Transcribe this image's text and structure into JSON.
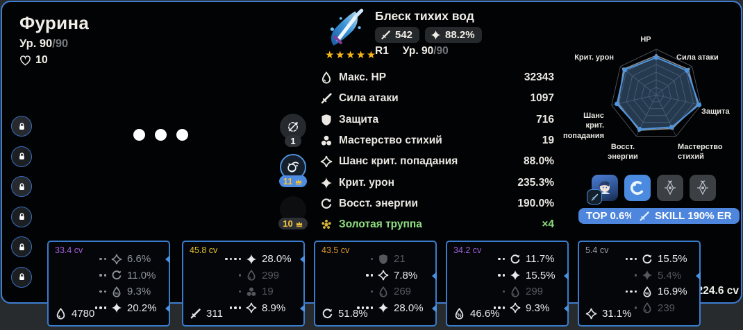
{
  "page": {
    "background": "#272b2e",
    "panel_color": "#020304",
    "accent_blue": "#3f7ed2"
  },
  "character": {
    "name": "Фурина",
    "level": "Ур. 90",
    "level_max": "/90",
    "friendship": "10"
  },
  "equip_slots": [
    {
      "locked": true,
      "has_art": true
    },
    {
      "locked": true,
      "has_art": false
    },
    {
      "locked": true,
      "has_art": true
    },
    {
      "locked": true,
      "has_art": false
    },
    {
      "locked": true,
      "has_art": false
    },
    {
      "locked": true,
      "has_art": false
    }
  ],
  "talents": [
    {
      "icon": "normal-attack",
      "level": "1",
      "crowned": false,
      "highlighted": false
    },
    {
      "icon": "elemental-skill",
      "level": "11",
      "crowned": true,
      "highlighted": true
    },
    {
      "icon": "elemental-burst",
      "level": "10",
      "crowned": true,
      "highlighted": false
    }
  ],
  "weapon": {
    "name": "Блеск тихих вод",
    "rarity": 5,
    "atk": "542",
    "crit_dmg": "88.2%",
    "refinement": "R1",
    "level": "Ур. 90",
    "level_max": "/90"
  },
  "stats": {
    "rows": [
      {
        "icon": "hp",
        "label": "Макс. HP",
        "value": "32343"
      },
      {
        "icon": "atk",
        "label": "Сила атаки",
        "value": "1097"
      },
      {
        "icon": "def",
        "label": "Защита",
        "value": "716"
      },
      {
        "icon": "em",
        "label": "Мастерство стихий",
        "value": "19"
      },
      {
        "icon": "crit-rate",
        "label": "Шанс крит. попадания",
        "value": "88.0%"
      },
      {
        "icon": "crit-dmg",
        "label": "Крит. урон",
        "value": "235.3%"
      },
      {
        "icon": "er",
        "label": "Восст. энергии",
        "value": "190.0%"
      },
      {
        "icon": "artifact-set",
        "label": "Золотая труппа",
        "value": "×4",
        "accent": "green"
      }
    ]
  },
  "chart_data": {
    "type": "radar",
    "rings": 6,
    "legend": "none",
    "axes": [
      {
        "label": "HP",
        "character": 0.82,
        "reference": 0.86
      },
      {
        "label": "Сила атаки",
        "character": 0.86,
        "reference": 0.9
      },
      {
        "label": "Защита",
        "character": 0.96,
        "reference": 0.93
      },
      {
        "label": "Мастерство\nстихий",
        "character": 0.78,
        "reference": 0.81
      },
      {
        "label": "Восст.\nэнергии",
        "character": 0.83,
        "reference": 0.86
      },
      {
        "label": "Шанс\nкрит. попадания",
        "character": 0.88,
        "reference": 0.85
      },
      {
        "label": "Крит. урон",
        "character": 0.88,
        "reference": 0.91
      }
    ],
    "series_colors": {
      "character": "#4e94dd",
      "reference": "#8d9298"
    }
  },
  "builds": {
    "icons": [
      "furina-avatar",
      "hydro-element",
      "constellation",
      "constellation"
    ],
    "top_badge": "TOP 0.6%",
    "skill_badge": "SKILL 190% ER"
  },
  "totals": {
    "cv": "224.6 cv"
  },
  "artifacts": [
    {
      "cv": "33.4 cv",
      "cv_color": "#a05fd6",
      "main": {
        "icon": "hp",
        "value": "4780"
      },
      "subs": [
        {
          "dots": 2,
          "icon": "crit-rate",
          "value": "6.6%",
          "tone": "mid",
          "marker": true
        },
        {
          "dots": 2,
          "icon": "er",
          "value": "11.0%",
          "tone": "mid",
          "marker": false
        },
        {
          "dots": 2,
          "icon": "hp-percent",
          "value": "9.3%",
          "tone": "mid",
          "marker": false
        },
        {
          "dots": 3,
          "icon": "crit-dmg",
          "value": "20.2%",
          "tone": "bright",
          "marker": true
        }
      ]
    },
    {
      "cv": "45.8 cv",
      "cv_color": "#e6c228",
      "main": {
        "icon": "atk",
        "value": "311"
      },
      "subs": [
        {
          "dots": 4,
          "icon": "crit-dmg",
          "value": "28.0%",
          "tone": "bright",
          "marker": true
        },
        {
          "dots": 1,
          "icon": "hp",
          "value": "299",
          "tone": "dim",
          "marker": false
        },
        {
          "dots": 1,
          "icon": "em",
          "value": "19",
          "tone": "dim",
          "marker": false
        },
        {
          "dots": 3,
          "icon": "crit-rate",
          "value": "8.9%",
          "tone": "bright",
          "marker": true
        }
      ]
    },
    {
      "cv": "43.5 cv",
      "cv_color": "#e0992d",
      "main": {
        "icon": "er",
        "value": "51.8%"
      },
      "subs": [
        {
          "dots": 1,
          "icon": "def",
          "value": "21",
          "tone": "dim",
          "marker": false
        },
        {
          "dots": 2,
          "icon": "crit-rate",
          "value": "7.8%",
          "tone": "bright",
          "marker": true
        },
        {
          "dots": 1,
          "icon": "hp",
          "value": "269",
          "tone": "dim",
          "marker": false
        },
        {
          "dots": 4,
          "icon": "crit-dmg",
          "value": "28.0%",
          "tone": "bright",
          "marker": true
        }
      ]
    },
    {
      "cv": "34.2 cv",
      "cv_color": "#a05fd6",
      "main": {
        "icon": "hp-percent",
        "value": "46.6%"
      },
      "subs": [
        {
          "dots": 2,
          "icon": "er",
          "value": "11.7%",
          "tone": "bright",
          "marker": false
        },
        {
          "dots": 2,
          "icon": "crit-dmg",
          "value": "15.5%",
          "tone": "bright",
          "marker": true
        },
        {
          "dots": 1,
          "icon": "hp",
          "value": "299",
          "tone": "dim",
          "marker": false
        },
        {
          "dots": 3,
          "icon": "crit-rate",
          "value": "9.3%",
          "tone": "bright",
          "marker": true
        }
      ]
    },
    {
      "cv": "5.4 cv",
      "cv_color": "#9aa0a6",
      "main": {
        "icon": "crit-rate",
        "value": "31.1%"
      },
      "subs": [
        {
          "dots": 3,
          "icon": "er",
          "value": "15.5%",
          "tone": "bright",
          "marker": false
        },
        {
          "dots": 1,
          "icon": "crit-dmg",
          "value": "5.4%",
          "tone": "dim",
          "marker": true
        },
        {
          "dots": 3,
          "icon": "hp-percent",
          "value": "16.9%",
          "tone": "bright",
          "marker": false
        },
        {
          "dots": 1,
          "icon": "hp",
          "value": "239",
          "tone": "dim",
          "marker": false
        }
      ]
    }
  ]
}
